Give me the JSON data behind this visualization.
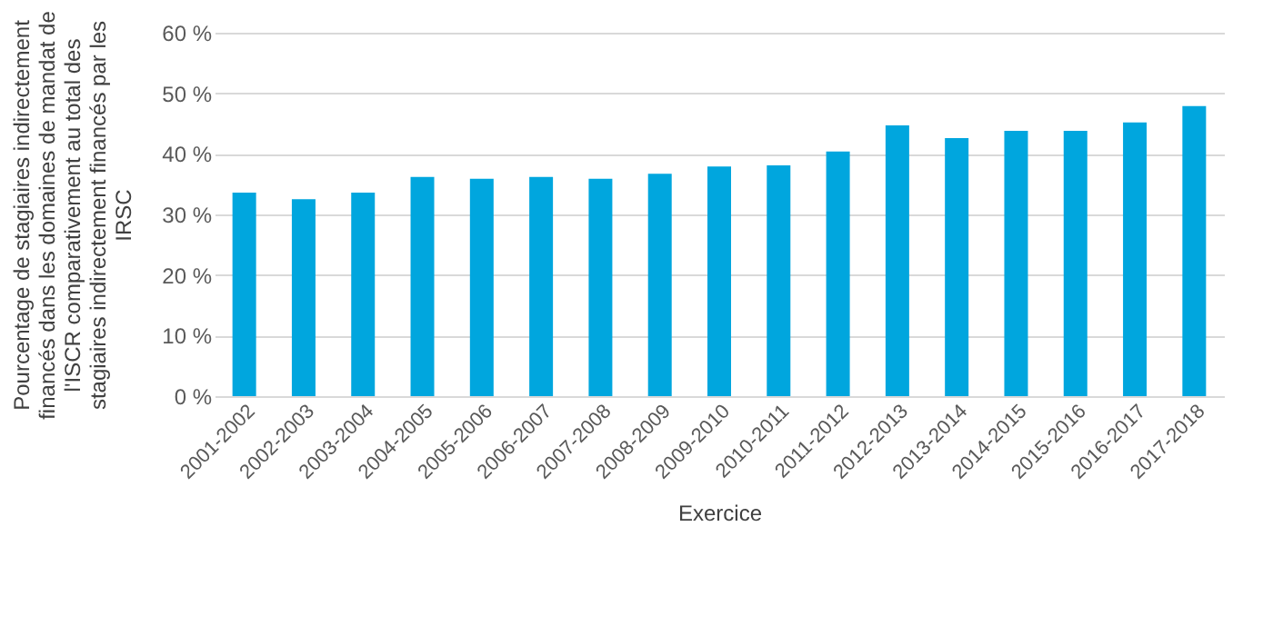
{
  "chart_data": {
    "type": "bar",
    "categories": [
      "2001-2002",
      "2002-2003",
      "2003-2004",
      "2004-2005",
      "2005-2006",
      "2006-2007",
      "2007-2008",
      "2008-2009",
      "2009-2010",
      "2010-2011",
      "2011-2012",
      "2012-2013",
      "2013-2014",
      "2014-2015",
      "2015-2016",
      "2016-2017",
      "2017-2018"
    ],
    "values": [
      33.6,
      32.5,
      33.6,
      36.2,
      35.9,
      36.2,
      35.9,
      36.7,
      37.9,
      38.1,
      40.4,
      44.7,
      42.6,
      43.8,
      43.8,
      45.2,
      47.9
    ],
    "color": "#00a6de",
    "ylim": [
      0,
      60
    ],
    "yticks": [
      {
        "value": 0,
        "label": "0 %"
      },
      {
        "value": 10,
        "label": "10 %"
      },
      {
        "value": 20,
        "label": "20 %"
      },
      {
        "value": 30,
        "label": "30 %"
      },
      {
        "value": 40,
        "label": "40 %"
      },
      {
        "value": 50,
        "label": "50 %"
      },
      {
        "value": 60,
        "label": "60 %"
      }
    ],
    "xlabel": "Exercice",
    "ylabel": "Pourcentage de stagiaires indirectement\nfinancés dans les domaines de mandat de\nl'ISCR comparativement au total des\nstagiaires indirectement financés par les\nIRSC",
    "grid": "y"
  }
}
